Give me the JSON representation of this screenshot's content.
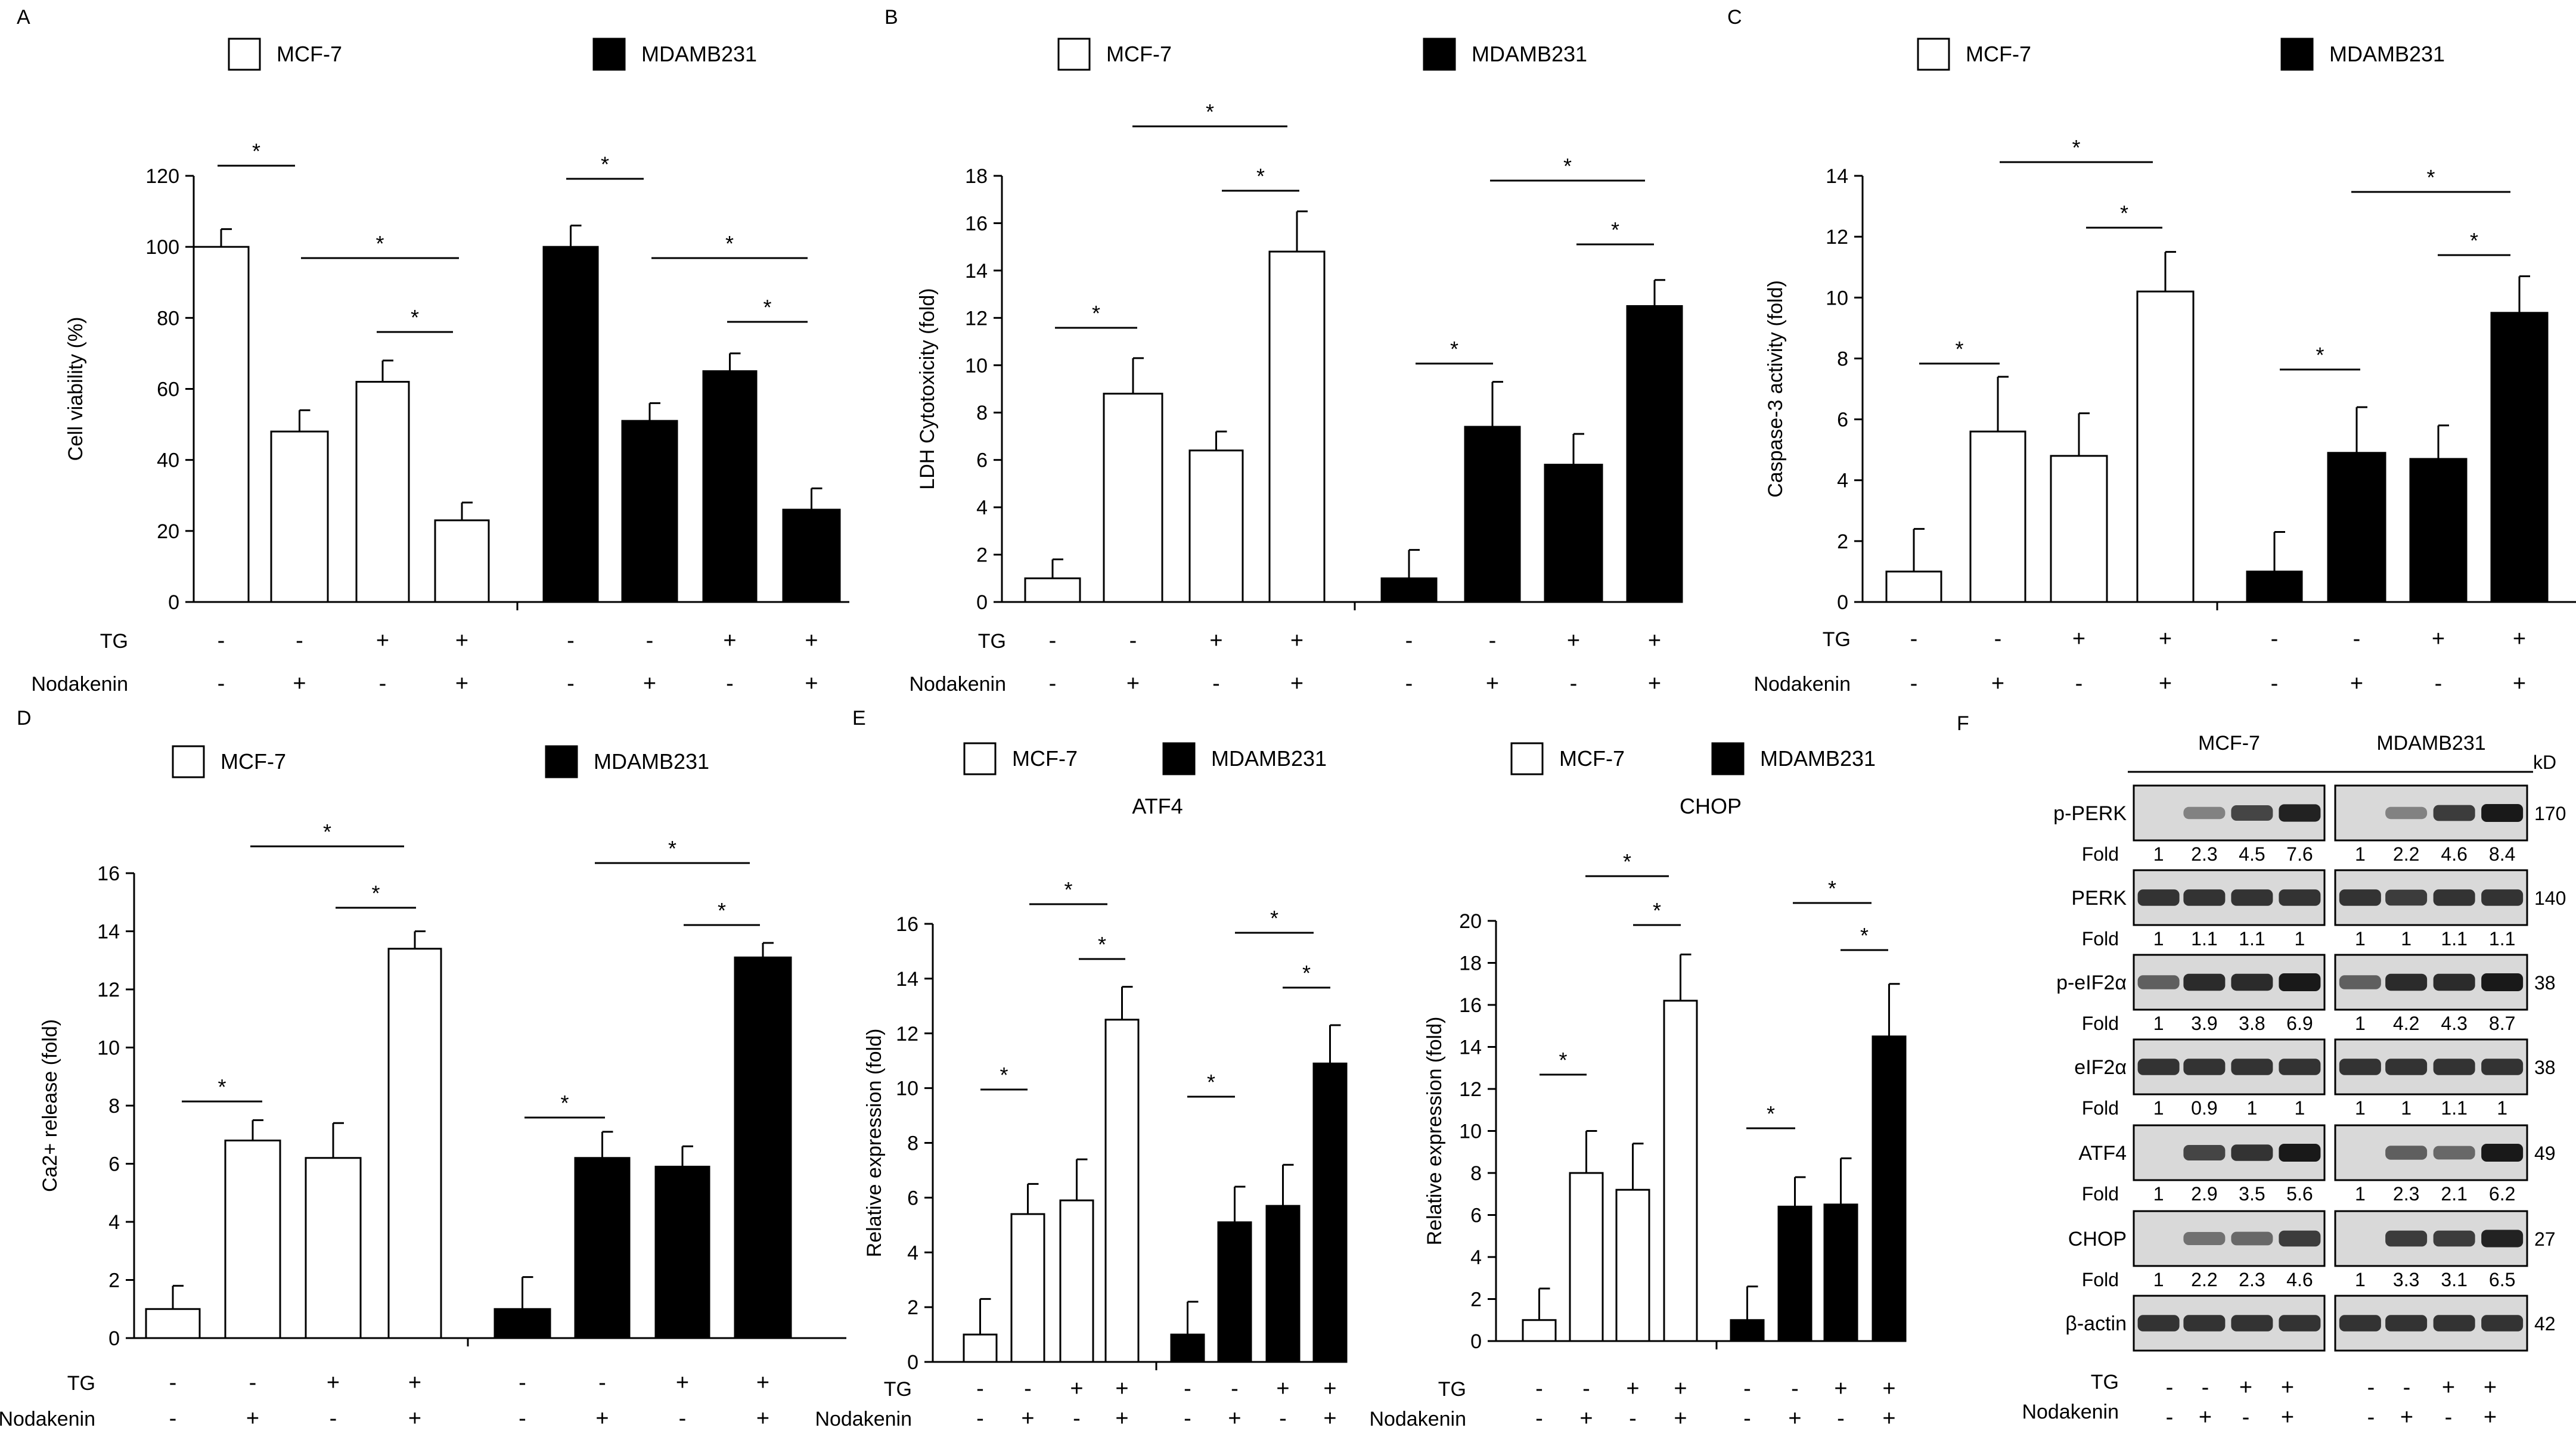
{
  "legend": {
    "mcf7": "MCF-7",
    "mdamb231": "MDAMB231"
  },
  "treatments": {
    "tg_label": "TG",
    "nod_label": "Nodakenin",
    "tg": [
      "-",
      "-",
      "+",
      "+"
    ],
    "nod": [
      "-",
      "+",
      "-",
      "+"
    ]
  },
  "significance_mark": "*",
  "chart_data": [
    {
      "panel": "A",
      "type": "bar",
      "ylabel": "Cell viability (%)",
      "ylim": [
        0,
        120
      ],
      "yticks": [
        0,
        20,
        40,
        60,
        80,
        100,
        120
      ],
      "series": [
        {
          "name": "MCF-7",
          "fill": "#ffffff",
          "values": [
            100,
            48,
            62,
            23
          ],
          "errors": [
            5,
            6,
            6,
            5
          ]
        },
        {
          "name": "MDAMB231",
          "fill": "#000000",
          "values": [
            100,
            51,
            65,
            26
          ],
          "errors": [
            6,
            5,
            5,
            6
          ]
        }
      ]
    },
    {
      "panel": "B",
      "type": "bar",
      "ylabel": "LDH Cytotoxicity (fold)",
      "ylim": [
        0,
        18
      ],
      "yticks": [
        0,
        2,
        4,
        6,
        8,
        10,
        12,
        14,
        16,
        18
      ],
      "series": [
        {
          "name": "MCF-7",
          "fill": "#ffffff",
          "values": [
            1,
            8.8,
            6.4,
            14.8
          ],
          "errors": [
            0.8,
            1.5,
            0.8,
            1.7
          ]
        },
        {
          "name": "MDAMB231",
          "fill": "#000000",
          "values": [
            1,
            7.4,
            5.8,
            12.5
          ],
          "errors": [
            1.2,
            1.9,
            1.3,
            1.1
          ]
        }
      ]
    },
    {
      "panel": "C",
      "type": "bar",
      "ylabel": "Caspase-3 activity (fold)",
      "ylim": [
        0,
        14
      ],
      "yticks": [
        0,
        2,
        4,
        6,
        8,
        10,
        12,
        14
      ],
      "series": [
        {
          "name": "MCF-7",
          "fill": "#ffffff",
          "values": [
            1,
            5.6,
            4.8,
            10.2
          ],
          "errors": [
            1.4,
            1.8,
            1.4,
            1.3
          ]
        },
        {
          "name": "MDAMB231",
          "fill": "#000000",
          "values": [
            1,
            4.9,
            4.7,
            9.5
          ],
          "errors": [
            1.3,
            1.5,
            1.1,
            1.2
          ]
        }
      ]
    },
    {
      "panel": "D",
      "type": "bar",
      "ylabel": "Ca2+ release (fold)",
      "ylim": [
        0,
        16
      ],
      "yticks": [
        0,
        2,
        4,
        6,
        8,
        10,
        12,
        14,
        16
      ],
      "series": [
        {
          "name": "MCF-7",
          "fill": "#ffffff",
          "values": [
            1,
            6.8,
            6.2,
            13.4
          ],
          "errors": [
            0.8,
            0.7,
            1.2,
            0.6
          ]
        },
        {
          "name": "MDAMB231",
          "fill": "#000000",
          "values": [
            1,
            6.2,
            5.9,
            13.1
          ],
          "errors": [
            1.1,
            0.9,
            0.7,
            0.5
          ]
        }
      ]
    },
    {
      "panel": "E",
      "type": "bar",
      "title": "ATF4",
      "ylabel": "Relative expression (fold)",
      "ylim": [
        0,
        16
      ],
      "yticks": [
        0,
        2,
        4,
        6,
        8,
        10,
        12,
        14,
        16
      ],
      "series": [
        {
          "name": "MCF-7",
          "fill": "#ffffff",
          "values": [
            1,
            5.4,
            5.9,
            12.5
          ],
          "errors": [
            1.3,
            1.1,
            1.5,
            1.2
          ]
        },
        {
          "name": "MDAMB231",
          "fill": "#000000",
          "values": [
            1,
            5.1,
            5.7,
            10.9
          ],
          "errors": [
            1.2,
            1.3,
            1.5,
            1.4
          ]
        }
      ]
    },
    {
      "panel": "",
      "type": "bar",
      "title": "CHOP",
      "ylabel": "Relative expression (fold)",
      "ylim": [
        0,
        20
      ],
      "yticks": [
        0,
        2,
        4,
        6,
        8,
        10,
        12,
        14,
        16,
        18,
        20
      ],
      "series": [
        {
          "name": "MCF-7",
          "fill": "#ffffff",
          "values": [
            1,
            8.0,
            7.2,
            16.2
          ],
          "errors": [
            1.5,
            2.0,
            2.2,
            2.2
          ]
        },
        {
          "name": "MDAMB231",
          "fill": "#000000",
          "values": [
            1,
            6.4,
            6.5,
            14.5
          ],
          "errors": [
            1.6,
            1.4,
            2.2,
            2.5
          ]
        }
      ]
    }
  ],
  "western_blot": {
    "panel": "F",
    "cell_lines": [
      "MCF-7",
      "MDAMB231"
    ],
    "kd_label": "kD",
    "fold_label": "Fold",
    "proteins": [
      {
        "name": "p-PERK",
        "kd": "170",
        "fold_mcf7": [
          "1",
          "2.3",
          "4.5",
          "7.6"
        ],
        "fold_mda": [
          "1",
          "2.2",
          "4.6",
          "8.4"
        ],
        "int_mcf7": [
          0.05,
          0.4,
          0.75,
          0.95
        ],
        "int_mda": [
          0.05,
          0.4,
          0.8,
          1.0
        ]
      },
      {
        "name": "PERK",
        "kd": "140",
        "fold_mcf7": [
          "1",
          "1.1",
          "1.1",
          "1"
        ],
        "fold_mda": [
          "1",
          "1",
          "1.1",
          "1.1"
        ],
        "int_mcf7": [
          0.85,
          0.85,
          0.85,
          0.85
        ],
        "int_mda": [
          0.85,
          0.8,
          0.85,
          0.85
        ]
      },
      {
        "name": "p-eIF2α",
        "kd": "38",
        "fold_mcf7": [
          "1",
          "3.9",
          "3.8",
          "6.9"
        ],
        "fold_mda": [
          "1",
          "4.2",
          "4.3",
          "8.7"
        ],
        "int_mcf7": [
          0.6,
          0.9,
          0.9,
          1.0
        ],
        "int_mda": [
          0.6,
          0.9,
          0.9,
          1.0
        ]
      },
      {
        "name": "eIF2α",
        "kd": "38",
        "fold_mcf7": [
          "1",
          "0.9",
          "1",
          "1"
        ],
        "fold_mda": [
          "1",
          "1",
          "1.1",
          "1"
        ],
        "int_mcf7": [
          0.85,
          0.85,
          0.85,
          0.85
        ],
        "int_mda": [
          0.85,
          0.85,
          0.85,
          0.85
        ]
      },
      {
        "name": "ATF4",
        "kd": "49",
        "fold_mcf7": [
          "1",
          "2.9",
          "3.5",
          "5.6"
        ],
        "fold_mda": [
          "1",
          "2.3",
          "2.1",
          "6.2"
        ],
        "int_mcf7": [
          0.05,
          0.75,
          0.85,
          1.0
        ],
        "int_mda": [
          0.05,
          0.6,
          0.55,
          1.0
        ]
      },
      {
        "name": "CHOP",
        "kd": "27",
        "fold_mcf7": [
          "1",
          "2.2",
          "2.3",
          "4.6"
        ],
        "fold_mda": [
          "1",
          "3.3",
          "3.1",
          "6.5"
        ],
        "int_mcf7": [
          0.05,
          0.5,
          0.55,
          0.8
        ],
        "int_mda": [
          0.05,
          0.8,
          0.8,
          0.95
        ]
      },
      {
        "name": "β-actin",
        "kd": "42",
        "fold_mcf7": [],
        "fold_mda": [],
        "int_mcf7": [
          0.85,
          0.85,
          0.85,
          0.85
        ],
        "int_mda": [
          0.85,
          0.85,
          0.85,
          0.85
        ]
      }
    ],
    "tg": [
      "-",
      "-",
      "+",
      "+",
      "-",
      "-",
      "+",
      "+"
    ],
    "nod": [
      "-",
      "+",
      "-",
      "+",
      "-",
      "+",
      "-",
      "+"
    ]
  },
  "colors": {
    "open_bar": "#ffffff",
    "filled_bar": "#000000",
    "blot_band": "#1a1a1a",
    "blot_bg": "#d9d9d9"
  }
}
